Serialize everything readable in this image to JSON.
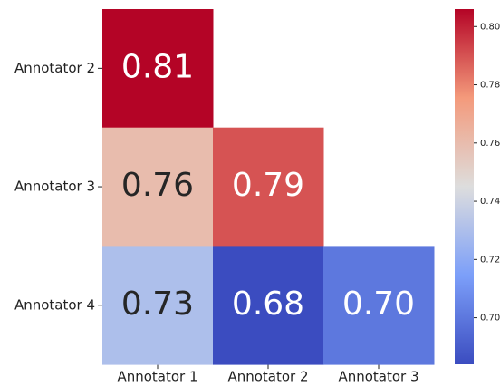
{
  "chart_data": {
    "type": "heatmap",
    "x_categories": [
      "Annotator 1",
      "Annotator 2",
      "Annotator 3"
    ],
    "y_categories": [
      "Annotator 2",
      "Annotator 3",
      "Annotator 4"
    ],
    "values": [
      [
        0.806,
        null,
        null
      ],
      [
        0.76,
        0.79,
        null
      ],
      [
        0.73,
        0.684,
        0.7
      ]
    ],
    "value_labels": [
      [
        "0.81",
        null,
        null
      ],
      [
        "0.76",
        "0.79",
        null
      ],
      [
        "0.73",
        "0.68",
        "0.70"
      ]
    ],
    "colormap": "coolwarm",
    "clim": [
      0.684,
      0.806
    ],
    "cticks": [
      {
        "value": 0.7,
        "label": "0.70"
      },
      0.72,
      0.74,
      0.76,
      0.78,
      {
        "value": 0.8,
        "label": "0.80"
      }
    ]
  }
}
